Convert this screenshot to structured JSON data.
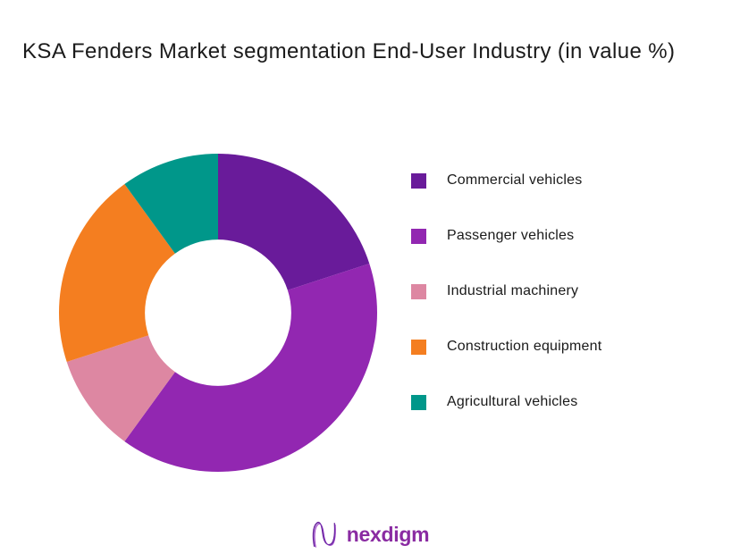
{
  "page": {
    "background": "#ffffff"
  },
  "chart_data": {
    "type": "pie",
    "subtype": "donut",
    "title": "KSA Fenders Market segmentation End-User Industry (in value %)",
    "categories": [
      "Commercial vehicles",
      "Passenger vehicles",
      "Industrial machinery",
      "Construction equipment",
      "Agricultural vehicles"
    ],
    "values": [
      20,
      40,
      10,
      20,
      10
    ],
    "unit": "%",
    "colors": [
      "#691B9A",
      "#9227B1",
      "#DD87A2",
      "#F47E20",
      "#00978A"
    ],
    "start_angle_deg": 0,
    "direction": "clockwise",
    "inner_radius_ratio": 0.46,
    "legend_position": "right",
    "data_labels": false
  },
  "footer": {
    "logo_text": "nexdigm",
    "logo_color": "#8a2ba2"
  }
}
